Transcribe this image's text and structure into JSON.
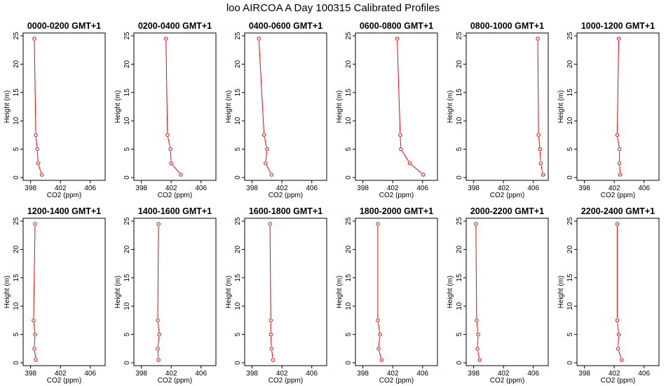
{
  "title": "loo AIRCOA A  Day 100315  Calibrated Profiles",
  "chart_data": [
    {
      "type": "line",
      "title": "0000-0200 GMT+1",
      "xlabel": "CO2 (ppm)",
      "ylabel": "Height (m)",
      "xlim": [
        397,
        408
      ],
      "ylim": [
        -0.5,
        25.5
      ],
      "xticks": [
        398,
        402,
        406
      ],
      "yticks": [
        0,
        5,
        10,
        15,
        20,
        25
      ],
      "x": [
        398.5,
        398.7,
        398.9,
        399.0,
        399.5
      ],
      "y": [
        24.5,
        7.5,
        5.0,
        2.5,
        0.5
      ]
    },
    {
      "type": "line",
      "title": "0200-0400 GMT+1",
      "xlabel": "CO2 (ppm)",
      "ylabel": "Height (m)",
      "xlim": [
        397,
        408
      ],
      "ylim": [
        -0.5,
        25.5
      ],
      "xticks": [
        398,
        402,
        406
      ],
      "yticks": [
        0,
        5,
        10,
        15,
        20,
        25
      ],
      "x": [
        401.3,
        401.5,
        401.9,
        402.0,
        403.3
      ],
      "y": [
        24.5,
        7.5,
        5.0,
        2.5,
        0.5
      ]
    },
    {
      "type": "line",
      "title": "0400-0600 GMT+1",
      "xlabel": "CO2 (ppm)",
      "ylabel": "Height (m)",
      "xlim": [
        397,
        408
      ],
      "ylim": [
        -0.5,
        25.5
      ],
      "xticks": [
        398,
        402,
        406
      ],
      "yticks": [
        0,
        5,
        10,
        15,
        20,
        25
      ],
      "x": [
        398.9,
        399.6,
        400.0,
        399.8,
        400.6
      ],
      "y": [
        24.5,
        7.5,
        5.0,
        2.5,
        0.5
      ]
    },
    {
      "type": "line",
      "title": "0600-0800 GMT+1",
      "xlabel": "CO2 (ppm)",
      "ylabel": "Height (m)",
      "xlim": [
        397,
        408
      ],
      "ylim": [
        -0.5,
        25.5
      ],
      "xticks": [
        398,
        402,
        406
      ],
      "yticks": [
        0,
        5,
        10,
        15,
        20,
        25
      ],
      "x": [
        402.6,
        403.0,
        403.1,
        404.3,
        406.1
      ],
      "y": [
        24.5,
        7.5,
        5.0,
        2.5,
        0.5
      ]
    },
    {
      "type": "line",
      "title": "0800-1000 GMT+1",
      "xlabel": "CO2 (ppm)",
      "ylabel": "Height (m)",
      "xlim": [
        397,
        408
      ],
      "ylim": [
        -0.5,
        25.5
      ],
      "xticks": [
        398,
        402,
        406
      ],
      "yticks": [
        0,
        5,
        10,
        15,
        20,
        25
      ],
      "x": [
        406.6,
        406.7,
        406.9,
        407.0,
        407.3
      ],
      "y": [
        24.5,
        7.5,
        5.0,
        2.5,
        0.5
      ]
    },
    {
      "type": "line",
      "title": "1000-1200 GMT+1",
      "xlabel": "CO2 (ppm)",
      "ylabel": "Height (m)",
      "xlim": [
        397,
        408
      ],
      "ylim": [
        -0.5,
        25.5
      ],
      "xticks": [
        398,
        402,
        406
      ],
      "yticks": [
        0,
        5,
        10,
        15,
        20,
        25
      ],
      "x": [
        402.6,
        402.4,
        402.7,
        402.7,
        402.8
      ],
      "y": [
        24.5,
        7.5,
        5.0,
        2.5,
        0.5
      ]
    },
    {
      "type": "line",
      "title": "1200-1400 GMT+1",
      "xlabel": "CO2 (ppm)",
      "ylabel": "Height (m)",
      "xlim": [
        397,
        408
      ],
      "ylim": [
        -0.5,
        25.5
      ],
      "xticks": [
        398,
        402,
        406
      ],
      "yticks": [
        0,
        5,
        10,
        15,
        20,
        25
      ],
      "x": [
        398.6,
        398.4,
        398.6,
        398.5,
        398.7
      ],
      "y": [
        24.5,
        7.5,
        5.0,
        2.5,
        0.5
      ]
    },
    {
      "type": "line",
      "title": "1400-1600 GMT+1",
      "xlabel": "CO2 (ppm)",
      "ylabel": "Height (m)",
      "xlim": [
        397,
        408
      ],
      "ylim": [
        -0.5,
        25.5
      ],
      "xticks": [
        398,
        402,
        406
      ],
      "yticks": [
        0,
        5,
        10,
        15,
        20,
        25
      ],
      "x": [
        400.3,
        400.2,
        400.4,
        400.2,
        400.3
      ],
      "y": [
        24.5,
        7.5,
        5.0,
        2.5,
        0.5
      ]
    },
    {
      "type": "line",
      "title": "1600-1800 GMT+1",
      "xlabel": "CO2 (ppm)",
      "ylabel": "Height (m)",
      "xlim": [
        397,
        408
      ],
      "ylim": [
        -0.5,
        25.5
      ],
      "xticks": [
        398,
        402,
        406
      ],
      "yticks": [
        0,
        5,
        10,
        15,
        20,
        25
      ],
      "x": [
        400.4,
        400.5,
        400.5,
        400.6,
        400.8
      ],
      "y": [
        24.5,
        7.5,
        5.0,
        2.5,
        0.5
      ]
    },
    {
      "type": "line",
      "title": "1800-2000 GMT+1",
      "xlabel": "CO2 (ppm)",
      "ylabel": "Height (m)",
      "xlim": [
        397,
        408
      ],
      "ylim": [
        -0.5,
        25.5
      ],
      "xticks": [
        398,
        402,
        406
      ],
      "yticks": [
        0,
        5,
        10,
        15,
        20,
        25
      ],
      "x": [
        400.0,
        400.0,
        400.3,
        400.1,
        400.5
      ],
      "y": [
        24.5,
        7.5,
        5.0,
        2.5,
        0.5
      ]
    },
    {
      "type": "line",
      "title": "2000-2200 GMT+1",
      "xlabel": "CO2 (ppm)",
      "ylabel": "Height (m)",
      "xlim": [
        397,
        408
      ],
      "ylim": [
        -0.5,
        25.5
      ],
      "xticks": [
        398,
        402,
        406
      ],
      "yticks": [
        0,
        5,
        10,
        15,
        20,
        25
      ],
      "x": [
        398.3,
        398.4,
        398.6,
        398.5,
        398.8
      ],
      "y": [
        24.5,
        7.5,
        5.0,
        2.5,
        0.5
      ]
    },
    {
      "type": "line",
      "title": "2200-2400 GMT+1",
      "xlabel": "CO2 (ppm)",
      "ylabel": "Height (m)",
      "xlim": [
        397,
        408
      ],
      "ylim": [
        -0.5,
        25.5
      ],
      "xticks": [
        398,
        402,
        406
      ],
      "yticks": [
        0,
        5,
        10,
        15,
        20,
        25
      ],
      "x": [
        402.4,
        402.4,
        402.6,
        402.5,
        403.0
      ],
      "y": [
        24.5,
        7.5,
        5.0,
        2.5,
        0.5
      ]
    }
  ]
}
